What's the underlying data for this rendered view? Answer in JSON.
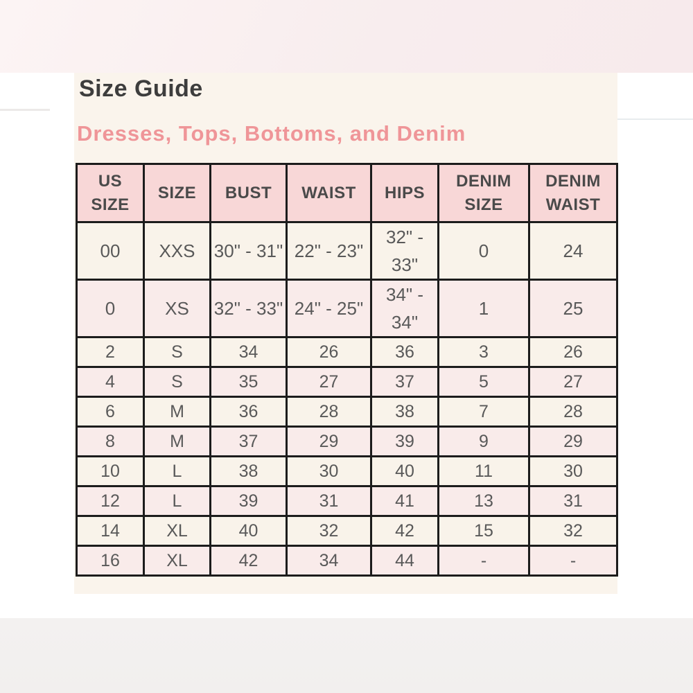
{
  "page": {
    "title": "Size Guide",
    "subtitle": "Dresses, Tops, Bottoms, and Denim"
  },
  "colors": {
    "top_band": "#f8edee",
    "bottom_band": "#f2efee",
    "card_bg": "#faf4ec",
    "header_bg": "#f8d7d7",
    "row_cream": "#f9f3ea",
    "row_pink": "#f9ebea",
    "grid_border": "#1c1c1c",
    "title_text": "#3d3d3d",
    "subtitle_pink": "#ef9598",
    "cell_text": "#595959"
  },
  "table": {
    "columns": [
      "US SIZE",
      "SIZE",
      "BUST",
      "WAIST",
      "HIPS",
      "DENIM SIZE",
      "DENIM WAIST"
    ],
    "rows": [
      [
        "00",
        "XXS",
        "30\" - 31\"",
        "22\" - 23\"",
        "32\" - 33\"",
        "0",
        "24"
      ],
      [
        "0",
        "XS",
        "32\" - 33\"",
        "24\" - 25\"",
        "34\" - 34\"",
        "1",
        "25"
      ],
      [
        "2",
        "S",
        "34",
        "26",
        "36",
        "3",
        "26"
      ],
      [
        "4",
        "S",
        "35",
        "27",
        "37",
        "5",
        "27"
      ],
      [
        "6",
        "M",
        "36",
        "28",
        "38",
        "7",
        "28"
      ],
      [
        "8",
        "M",
        "37",
        "29",
        "39",
        "9",
        "29"
      ],
      [
        "10",
        "L",
        "38",
        "30",
        "40",
        "11",
        "30"
      ],
      [
        "12",
        "L",
        "39",
        "31",
        "41",
        "13",
        "31"
      ],
      [
        "14",
        "XL",
        "40",
        "32",
        "42",
        "15",
        "32"
      ],
      [
        "16",
        "XL",
        "42",
        "34",
        "44",
        "-",
        "-"
      ]
    ]
  }
}
